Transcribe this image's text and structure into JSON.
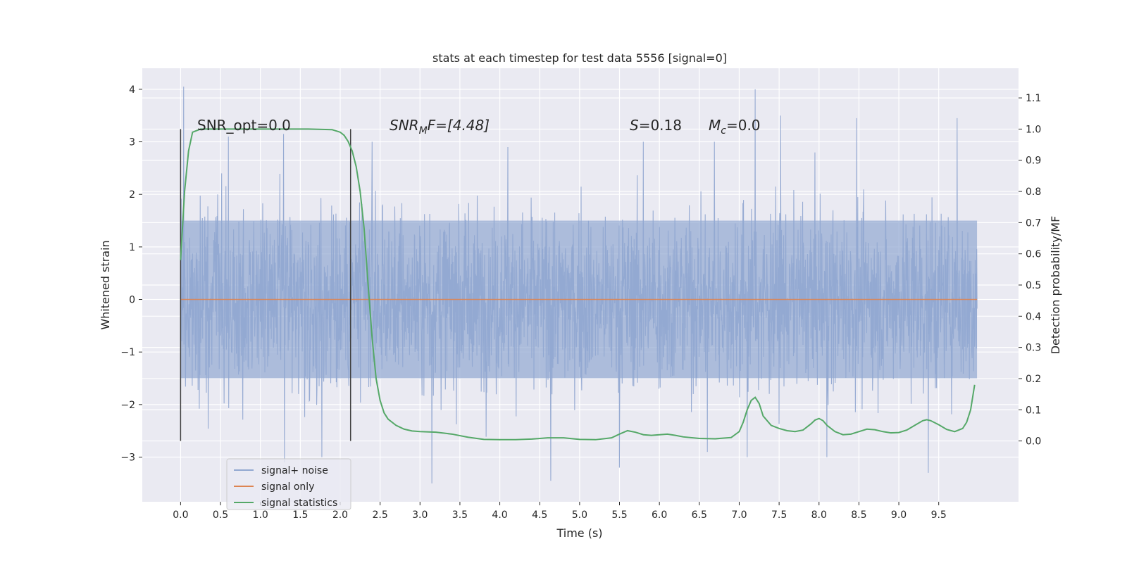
{
  "chart_data": {
    "type": "line",
    "title": "stats at each timestep for test data 5556 [signal=0]",
    "xlabel": "Time (s)",
    "ylabel": "Whitened strain",
    "y2label": "Detection probability/MF",
    "xlim": [
      -0.48,
      10.5
    ],
    "ylim": [
      -3.85,
      4.4
    ],
    "y2lim": [
      -0.195,
      1.195
    ],
    "x_ticks": [
      0.0,
      0.5,
      1.0,
      1.5,
      2.0,
      2.5,
      3.0,
      3.5,
      4.0,
      4.5,
      5.0,
      5.5,
      6.0,
      6.5,
      7.0,
      7.5,
      8.0,
      8.5,
      9.0,
      9.5
    ],
    "x_tick_labels": [
      "0.0",
      "0.5",
      "1.0",
      "1.5",
      "2.0",
      "2.5",
      "3.0",
      "3.5",
      "4.0",
      "4.5",
      "5.0",
      "5.5",
      "6.0",
      "6.5",
      "7.0",
      "7.5",
      "8.0",
      "8.5",
      "9.0",
      "9.5"
    ],
    "y_ticks": [
      -3,
      -2,
      -1,
      0,
      1,
      2,
      3,
      4
    ],
    "y_tick_labels": [
      "−3",
      "−2",
      "−1",
      "0",
      "1",
      "2",
      "3",
      "4"
    ],
    "y2_ticks": [
      0.0,
      0.1,
      0.2,
      0.3,
      0.4,
      0.5,
      0.6,
      0.7,
      0.8,
      0.9,
      1.0,
      1.1
    ],
    "y2_tick_labels": [
      "0.0",
      "0.1",
      "0.2",
      "0.3",
      "0.4",
      "0.5",
      "0.6",
      "0.7",
      "0.8",
      "0.9",
      "1.0",
      "1.1"
    ],
    "grid": true,
    "legend_position": "lower-left",
    "annotations": {
      "snr_opt": "SNR_opt=0.0",
      "snr_mf_prefix": "SNR",
      "snr_mf_sub": "M",
      "snr_mf_suffix": "F=[4.48]",
      "s_sym": "S",
      "s_val": "=0.18",
      "mc_sym": "M",
      "mc_sub": "c",
      "mc_val": "=0.0"
    },
    "vlines": [
      0.0,
      2.13
    ],
    "noise_band": {
      "x_start": 0.0,
      "x_end": 9.98,
      "typical_range": [
        -1.5,
        1.5
      ],
      "min": -3.5,
      "max": 4.05,
      "peaks": [
        {
          "x": 0.04,
          "y": 4.05
        },
        {
          "x": 7.2,
          "y": 4.0
        },
        {
          "x": 7.52,
          "y": 3.5
        },
        {
          "x": 8.47,
          "y": 3.45
        },
        {
          "x": 9.73,
          "y": 3.45
        },
        {
          "x": 0.6,
          "y": 3.1
        },
        {
          "x": 1.29,
          "y": 3.15
        },
        {
          "x": 2.4,
          "y": 3.0
        },
        {
          "x": 4.1,
          "y": 2.9
        },
        {
          "x": 5.8,
          "y": 3.0
        },
        {
          "x": 6.69,
          "y": 3.0
        },
        {
          "x": 3.15,
          "y": -3.5
        },
        {
          "x": 4.64,
          "y": -3.45
        },
        {
          "x": 9.37,
          "y": -3.3
        },
        {
          "x": 1.3,
          "y": -3.1
        },
        {
          "x": 5.5,
          "y": -3.2
        },
        {
          "x": 7.1,
          "y": -3.0
        },
        {
          "x": 1.77,
          "y": -3.0
        },
        {
          "x": 8.1,
          "y": -3.0
        },
        {
          "x": 6.6,
          "y": -2.9
        }
      ]
    },
    "series": [
      {
        "name": "signal+ noise",
        "color": "#92a8d1"
      },
      {
        "name": "signal only",
        "color": "#dd8452",
        "x": [
          0.0,
          9.98
        ],
        "y": [
          0.0,
          0.0
        ]
      },
      {
        "name": "signal statistics",
        "color": "#55a868",
        "axis": "right",
        "x": [
          0.0,
          0.05,
          0.1,
          0.15,
          0.25,
          0.4,
          0.8,
          1.2,
          1.6,
          1.9,
          2.0,
          2.05,
          2.1,
          2.15,
          2.2,
          2.25,
          2.3,
          2.35,
          2.4,
          2.45,
          2.5,
          2.55,
          2.6,
          2.7,
          2.8,
          2.9,
          3.0,
          3.2,
          3.4,
          3.6,
          3.8,
          4.0,
          4.2,
          4.4,
          4.6,
          4.8,
          5.0,
          5.2,
          5.4,
          5.5,
          5.6,
          5.7,
          5.8,
          5.9,
          6.0,
          6.1,
          6.2,
          6.3,
          6.5,
          6.7,
          6.9,
          7.0,
          7.05,
          7.1,
          7.15,
          7.2,
          7.25,
          7.3,
          7.4,
          7.5,
          7.6,
          7.7,
          7.8,
          7.9,
          7.95,
          8.0,
          8.05,
          8.1,
          8.2,
          8.3,
          8.4,
          8.5,
          8.6,
          8.7,
          8.8,
          8.9,
          9.0,
          9.1,
          9.2,
          9.3,
          9.35,
          9.4,
          9.5,
          9.6,
          9.7,
          9.8,
          9.85,
          9.9,
          9.95
        ],
        "y": [
          0.58,
          0.8,
          0.93,
          0.99,
          1.0,
          1.0,
          1.0,
          1.0,
          1.0,
          0.998,
          0.99,
          0.98,
          0.96,
          0.93,
          0.88,
          0.8,
          0.68,
          0.5,
          0.33,
          0.2,
          0.13,
          0.09,
          0.07,
          0.05,
          0.038,
          0.032,
          0.03,
          0.028,
          0.022,
          0.012,
          0.005,
          0.004,
          0.004,
          0.006,
          0.01,
          0.01,
          0.005,
          0.004,
          0.01,
          0.022,
          0.033,
          0.028,
          0.02,
          0.018,
          0.02,
          0.022,
          0.018,
          0.013,
          0.008,
          0.007,
          0.011,
          0.03,
          0.06,
          0.1,
          0.13,
          0.14,
          0.12,
          0.08,
          0.05,
          0.04,
          0.033,
          0.03,
          0.035,
          0.055,
          0.067,
          0.072,
          0.065,
          0.05,
          0.03,
          0.02,
          0.022,
          0.03,
          0.038,
          0.036,
          0.03,
          0.026,
          0.027,
          0.035,
          0.05,
          0.065,
          0.068,
          0.065,
          0.052,
          0.037,
          0.03,
          0.04,
          0.06,
          0.1,
          0.18
        ]
      }
    ]
  }
}
